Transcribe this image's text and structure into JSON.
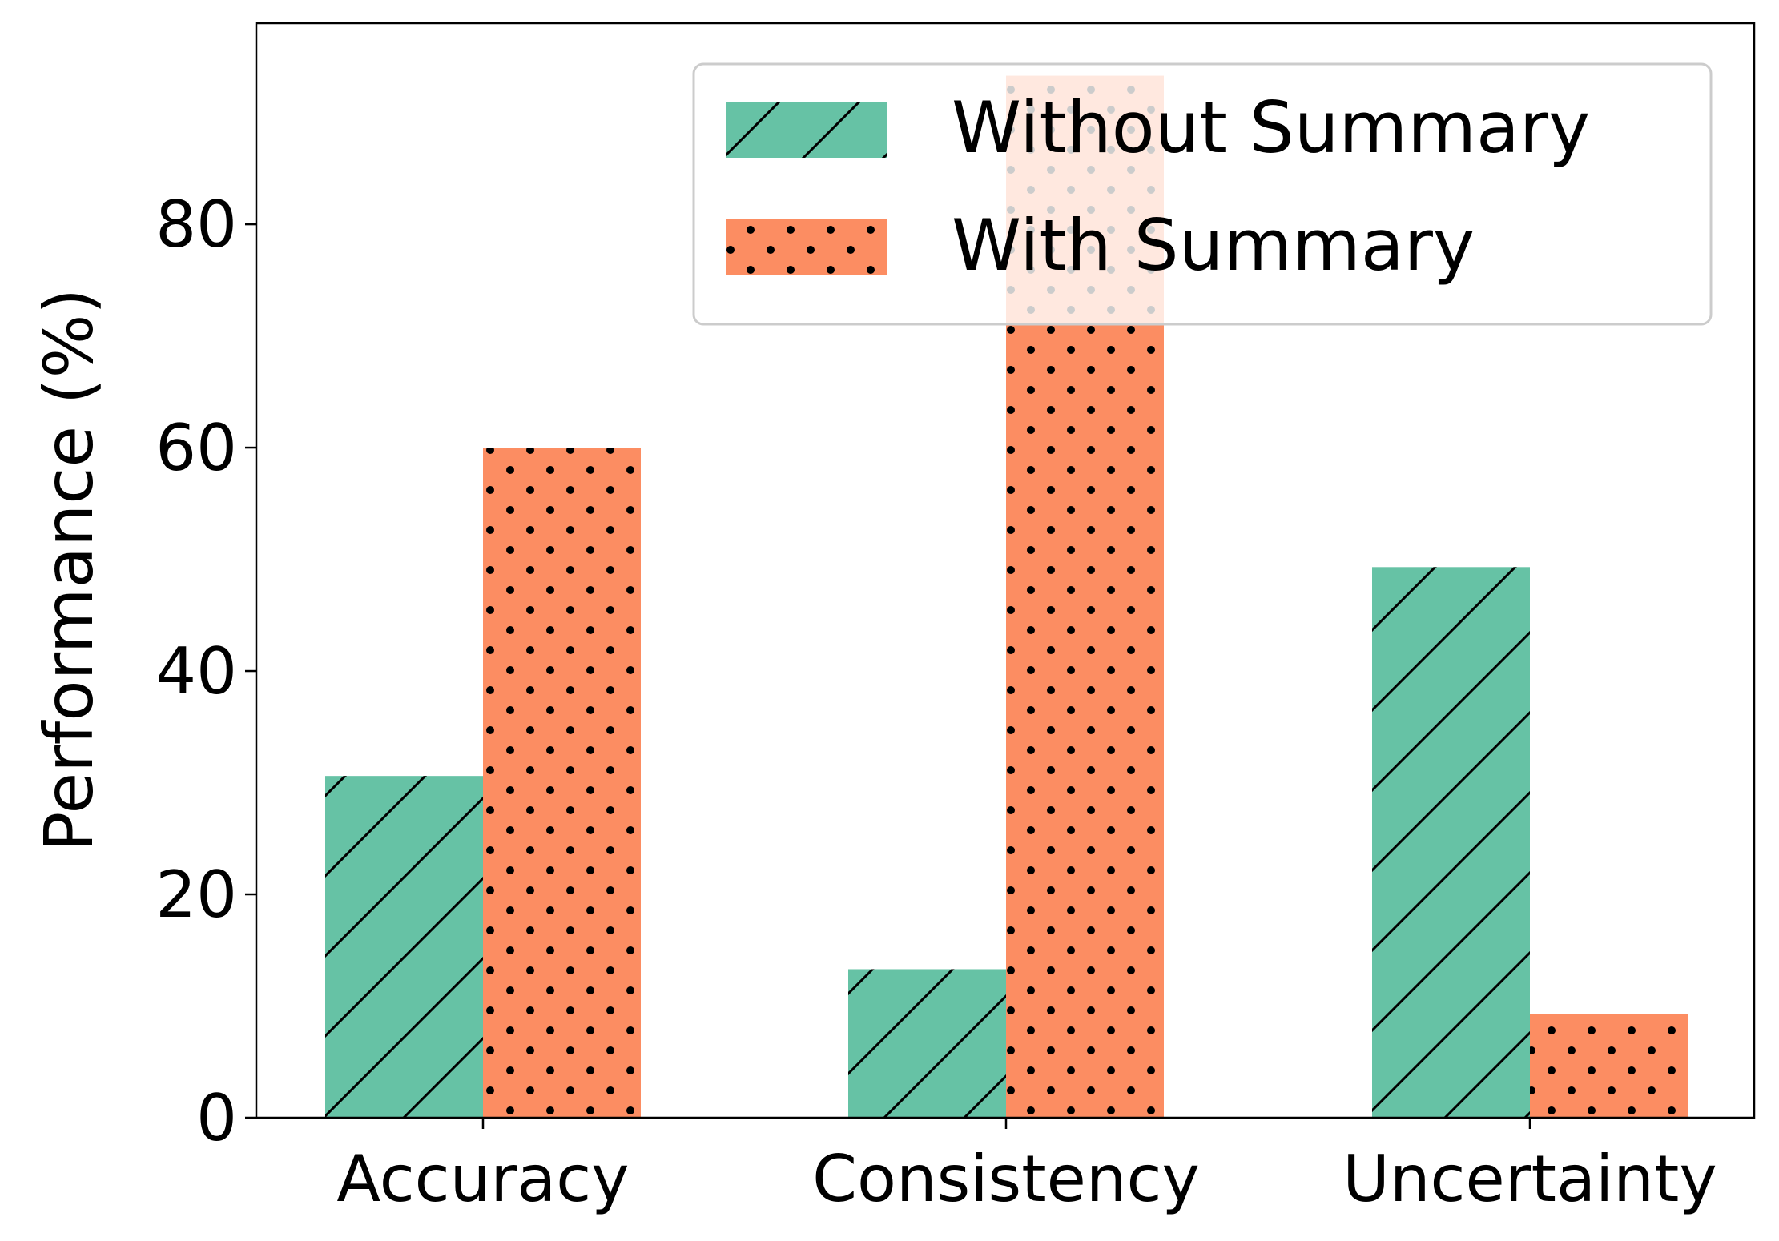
{
  "chart_data": {
    "type": "bar",
    "categories": [
      "Accuracy",
      "Consistency",
      "Uncertainty"
    ],
    "series": [
      {
        "name": "Without Summary",
        "values": [
          30.6,
          13.3,
          49.3
        ],
        "color": "#66c2a5",
        "pattern": "diagonal-hatch"
      },
      {
        "name": "With Summary",
        "values": [
          60.0,
          93.3,
          9.3
        ],
        "color": "#fc8d62",
        "pattern": "dots"
      }
    ],
    "title": "",
    "xlabel": "",
    "ylabel": "Performance (%)",
    "ylim": [
      0,
      98
    ],
    "yticks": [
      0,
      20,
      40,
      60,
      80
    ],
    "grid": false,
    "legend_position": "top-right"
  }
}
